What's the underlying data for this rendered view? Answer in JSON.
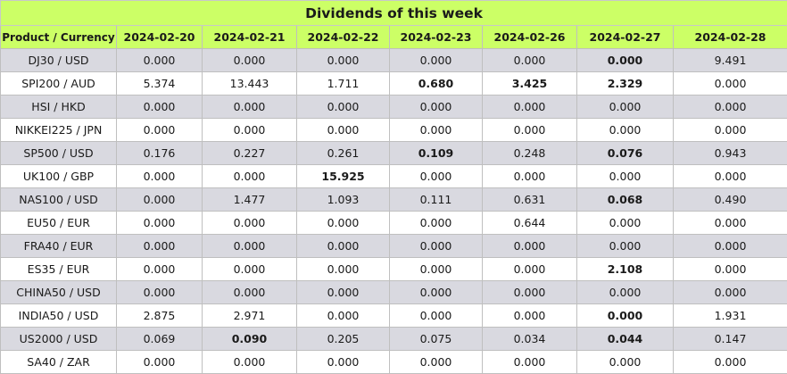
{
  "title": "Dividends of this week",
  "columns": {
    "product": "Product / Currency",
    "dates": [
      "2024-02-20",
      "2024-02-21",
      "2024-02-22",
      "2024-02-23",
      "2024-02-26",
      "2024-02-27",
      "2024-02-28"
    ]
  },
  "rows": [
    {
      "product": "DJ30 / USD",
      "values": [
        "0.000",
        "0.000",
        "0.000",
        "0.000",
        "0.000",
        "0.000",
        "9.491"
      ]
    },
    {
      "product": "SPI200 / AUD",
      "values": [
        "5.374",
        "13.443",
        "1.711",
        "0.680",
        "3.425",
        "2.329",
        "0.000"
      ]
    },
    {
      "product": "HSI / HKD",
      "values": [
        "0.000",
        "0.000",
        "0.000",
        "0.000",
        "0.000",
        "0.000",
        "0.000"
      ]
    },
    {
      "product": "NIKKEI225 / JPN",
      "values": [
        "0.000",
        "0.000",
        "0.000",
        "0.000",
        "0.000",
        "0.000",
        "0.000"
      ]
    },
    {
      "product": "SP500 / USD",
      "values": [
        "0.176",
        "0.227",
        "0.261",
        "0.109",
        "0.248",
        "0.076",
        "0.943"
      ]
    },
    {
      "product": "UK100 / GBP",
      "values": [
        "0.000",
        "0.000",
        "15.925",
        "0.000",
        "0.000",
        "0.000",
        "0.000"
      ]
    },
    {
      "product": "NAS100 / USD",
      "values": [
        "0.000",
        "1.477",
        "1.093",
        "0.111",
        "0.631",
        "0.068",
        "0.490"
      ]
    },
    {
      "product": "EU50 / EUR",
      "values": [
        "0.000",
        "0.000",
        "0.000",
        "0.000",
        "0.644",
        "0.000",
        "0.000"
      ]
    },
    {
      "product": "FRA40 / EUR",
      "values": [
        "0.000",
        "0.000",
        "0.000",
        "0.000",
        "0.000",
        "0.000",
        "0.000"
      ]
    },
    {
      "product": "ES35 / EUR",
      "values": [
        "0.000",
        "0.000",
        "0.000",
        "0.000",
        "0.000",
        "2.108",
        "0.000"
      ]
    },
    {
      "product": "CHINA50 / USD",
      "values": [
        "0.000",
        "0.000",
        "0.000",
        "0.000",
        "0.000",
        "0.000",
        "0.000"
      ]
    },
    {
      "product": "INDIA50 / USD",
      "values": [
        "2.875",
        "2.971",
        "0.000",
        "0.000",
        "0.000",
        "0.000",
        "1.931"
      ]
    },
    {
      "product": "US2000 / USD",
      "values": [
        "0.069",
        "0.090",
        "0.205",
        "0.075",
        "0.034",
        "0.044",
        "0.147"
      ]
    },
    {
      "product": "SA40 / ZAR",
      "values": [
        "0.000",
        "0.000",
        "0.000",
        "0.000",
        "0.000",
        "0.000",
        "0.000"
      ]
    }
  ],
  "bold_cells": [
    [
      0,
      5
    ],
    [
      1,
      3
    ],
    [
      1,
      4
    ],
    [
      1,
      5
    ],
    [
      4,
      3
    ],
    [
      4,
      5
    ],
    [
      5,
      2
    ],
    [
      6,
      5
    ],
    [
      9,
      5
    ],
    [
      11,
      5
    ],
    [
      12,
      1
    ],
    [
      12,
      5
    ]
  ],
  "colors": {
    "header_bg": "#ccff66",
    "odd_row_bg": "#d9d9e0",
    "even_row_bg": "#ffffff",
    "border": "#bfbfbf"
  }
}
